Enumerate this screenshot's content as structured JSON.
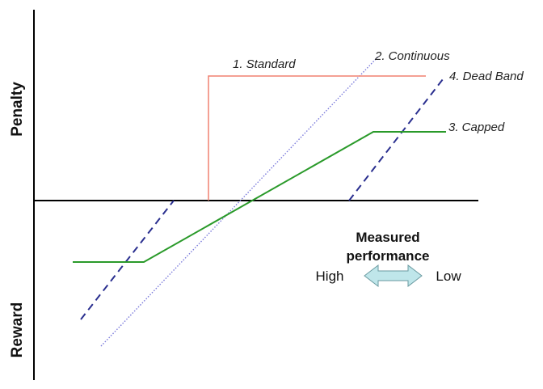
{
  "axes": {
    "y_top_label": "Penalty",
    "y_bottom_label": "Reward"
  },
  "curves": [
    {
      "id": "standard",
      "label": "1. Standard",
      "color": "#f08070",
      "style": "solid"
    },
    {
      "id": "continuous",
      "label": "2. Continuous",
      "color": "#7a7adb",
      "style": "dotted"
    },
    {
      "id": "capped",
      "label": "3. Capped",
      "color": "#2a9a2a",
      "style": "solid"
    },
    {
      "id": "dead_band",
      "label": "4. Dead Band",
      "color": "#2a2f8f",
      "style": "dashed"
    }
  ],
  "performance": {
    "title_line1": "Measured",
    "title_line2": "performance",
    "left_label": "High",
    "right_label": "Low",
    "arrow_color": "#bfe6ea"
  }
}
